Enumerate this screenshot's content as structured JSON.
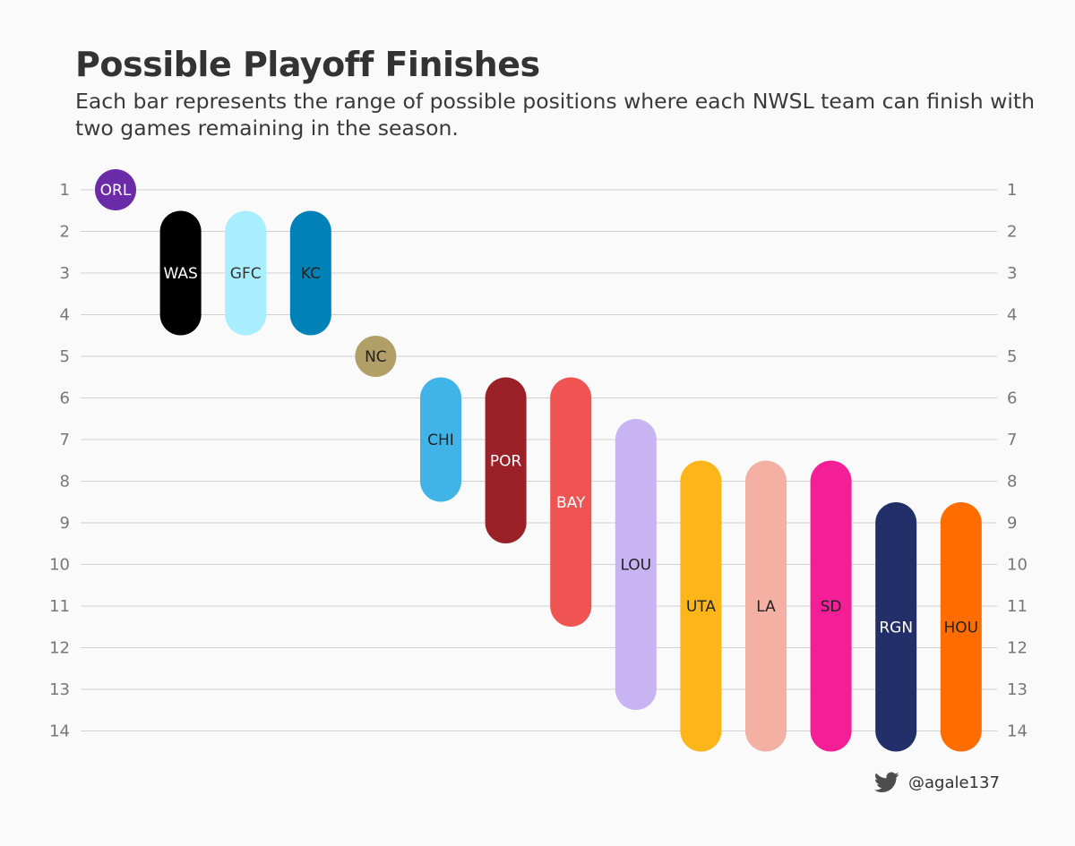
{
  "chart_data": {
    "type": "range-bar",
    "title": "Possible Playoff Finishes",
    "subtitle": "Each bar represents the range of possible positions where each NWSL team can finish with two games remaining in the season.",
    "y_ticks": [
      1,
      2,
      3,
      4,
      5,
      6,
      7,
      8,
      9,
      10,
      11,
      12,
      13,
      14
    ],
    "ylim": [
      1,
      14
    ],
    "y_reversed": true,
    "grid": true,
    "teams": [
      {
        "team": "ORL",
        "best": 1,
        "worst": 1,
        "color": "#6b2aa8",
        "text_color": "#ffffff"
      },
      {
        "team": "WAS",
        "best": 2,
        "worst": 4,
        "color": "#000000",
        "text_color": "#ffffff"
      },
      {
        "team": "GFC",
        "best": 2,
        "worst": 4,
        "color": "#a8eeff",
        "text_color": "#333333"
      },
      {
        "team": "KC",
        "best": 2,
        "worst": 4,
        "color": "#0081b8",
        "text_color": "#222222"
      },
      {
        "team": "NC",
        "best": 5,
        "worst": 5,
        "color": "#b19f67",
        "text_color": "#222222"
      },
      {
        "team": "CHI",
        "best": 6,
        "worst": 8,
        "color": "#40b4e6",
        "text_color": "#222222"
      },
      {
        "team": "POR",
        "best": 6,
        "worst": 9,
        "color": "#9b2129",
        "text_color": "#ffffff"
      },
      {
        "team": "BAY",
        "best": 6,
        "worst": 11,
        "color": "#f05452",
        "text_color": "#ffffff"
      },
      {
        "team": "LOU",
        "best": 7,
        "worst": 13,
        "color": "#c8b4f3",
        "text_color": "#222222"
      },
      {
        "team": "UTA",
        "best": 8,
        "worst": 14,
        "color": "#fcb61a",
        "text_color": "#222222"
      },
      {
        "team": "LA",
        "best": 8,
        "worst": 14,
        "color": "#f3b0a3",
        "text_color": "#222222"
      },
      {
        "team": "SD",
        "best": 8,
        "worst": 14,
        "color": "#f41f96",
        "text_color": "#222222"
      },
      {
        "team": "RGN",
        "best": 9,
        "worst": 14,
        "color": "#232f68",
        "text_color": "#ffffff"
      },
      {
        "team": "HOU",
        "best": 9,
        "worst": 14,
        "color": "#ff6c00",
        "text_color": "#222222"
      }
    ]
  },
  "credit": {
    "icon": "twitter-bird-icon",
    "handle": "@agale137"
  }
}
